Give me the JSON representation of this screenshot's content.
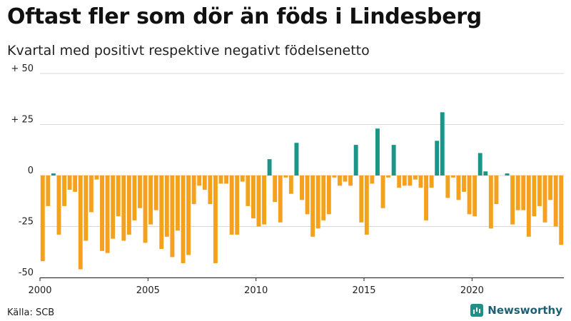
{
  "title": "Oftast fler som dör än föds i Lindesberg",
  "subtitle": "Kvartal med positivt respektive negativt födelsenetto",
  "source": "Källa: SCB",
  "brand": "Newsworthy",
  "colors": {
    "positive": "#1a9688",
    "negative": "#f4a11d",
    "grid": "#d9d9d9"
  },
  "chart_data": {
    "type": "bar",
    "title": "Oftast fler som dör än föds i Lindesberg",
    "xlabel": "",
    "ylabel": "",
    "ylim": [
      -50,
      50
    ],
    "yticks": [
      50,
      25,
      0,
      -25,
      -50
    ],
    "ytick_labels": [
      "+ 50",
      "+ 25",
      "0",
      "-25",
      "-50"
    ],
    "xticks": [
      2000,
      2005,
      2010,
      2015,
      2020
    ],
    "xtick_labels": [
      "2000",
      "2005",
      "2010",
      "2015",
      "2020"
    ],
    "start_year": 2000,
    "end_year": 2024.25,
    "categories": [
      "2000 Q1",
      "2000 Q2",
      "2000 Q3",
      "2000 Q4",
      "2001 Q1",
      "2001 Q2",
      "2001 Q3",
      "2001 Q4",
      "2002 Q1",
      "2002 Q2",
      "2002 Q3",
      "2002 Q4",
      "2003 Q1",
      "2003 Q2",
      "2003 Q3",
      "2003 Q4",
      "2004 Q1",
      "2004 Q2",
      "2004 Q3",
      "2004 Q4",
      "2005 Q1",
      "2005 Q2",
      "2005 Q3",
      "2005 Q4",
      "2006 Q1",
      "2006 Q2",
      "2006 Q3",
      "2006 Q4",
      "2007 Q1",
      "2007 Q2",
      "2007 Q3",
      "2007 Q4",
      "2008 Q1",
      "2008 Q2",
      "2008 Q3",
      "2008 Q4",
      "2009 Q1",
      "2009 Q2",
      "2009 Q3",
      "2009 Q4",
      "2010 Q1",
      "2010 Q2",
      "2010 Q3",
      "2010 Q4",
      "2011 Q1",
      "2011 Q2",
      "2011 Q3",
      "2011 Q4",
      "2012 Q1",
      "2012 Q2",
      "2012 Q3",
      "2012 Q4",
      "2013 Q1",
      "2013 Q2",
      "2013 Q3",
      "2013 Q4",
      "2014 Q1",
      "2014 Q2",
      "2014 Q3",
      "2014 Q4",
      "2015 Q1",
      "2015 Q2",
      "2015 Q3",
      "2015 Q4",
      "2016 Q1",
      "2016 Q2",
      "2016 Q3",
      "2016 Q4",
      "2017 Q1",
      "2017 Q2",
      "2017 Q3",
      "2017 Q4",
      "2018 Q1",
      "2018 Q2",
      "2018 Q3",
      "2018 Q4",
      "2019 Q1",
      "2019 Q2",
      "2019 Q3",
      "2019 Q4",
      "2020 Q1",
      "2020 Q2",
      "2020 Q3",
      "2020 Q4",
      "2021 Q1",
      "2021 Q2",
      "2021 Q3",
      "2021 Q4",
      "2022 Q1",
      "2022 Q2",
      "2022 Q3",
      "2022 Q4",
      "2023 Q1",
      "2023 Q2",
      "2023 Q3",
      "2023 Q4",
      "2024 Q1"
    ],
    "values": [
      -42,
      -15,
      1,
      -29,
      -15,
      -7,
      -8,
      -46,
      -32,
      -18,
      -2,
      -37,
      -38,
      -31,
      -20,
      -32,
      -29,
      -22,
      -16,
      -33,
      -24,
      -17,
      -36,
      -30,
      -40,
      -27,
      -43,
      -39,
      -14,
      -5,
      -7,
      -14,
      -43,
      -4,
      -4,
      -29,
      -29,
      -3,
      -15,
      -21,
      -25,
      -24,
      8,
      -13,
      -23,
      -1,
      -9,
      16,
      -12,
      -19,
      -30,
      -26,
      -22,
      -19,
      -1,
      -5,
      -3,
      -5,
      15,
      -23,
      -29,
      -4,
      23,
      -16,
      -1,
      15,
      -6,
      -5,
      -5,
      -2,
      -6,
      -22,
      -6,
      17,
      31,
      -11,
      -1,
      -12,
      -8,
      -19,
      -20,
      11,
      2,
      -26,
      -14,
      0,
      1,
      -24,
      -17,
      -17,
      -30,
      -20,
      -15,
      -23,
      -12,
      -25,
      -34
    ]
  }
}
